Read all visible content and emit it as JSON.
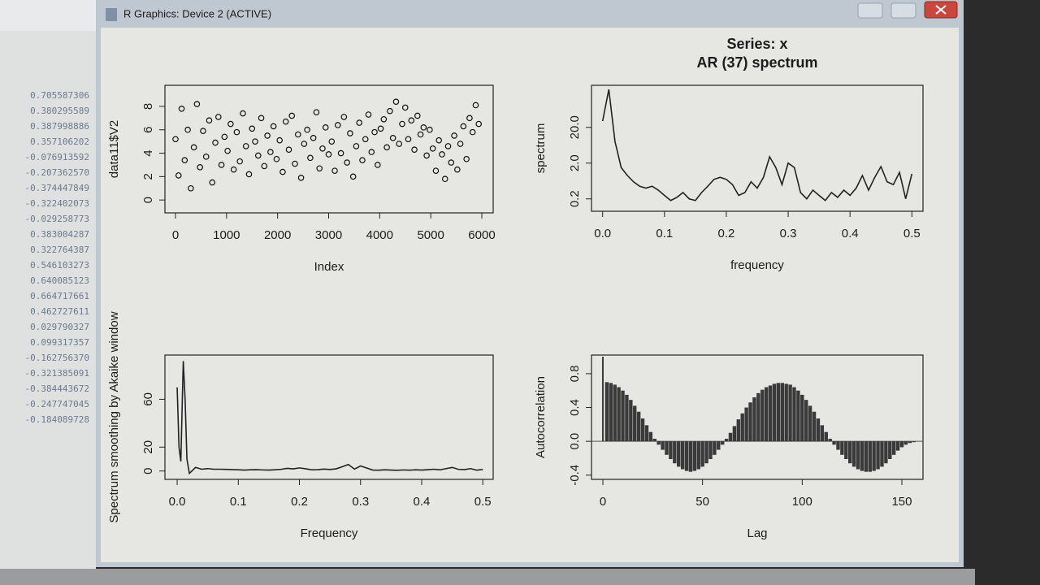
{
  "window": {
    "title": "R Graphics: Device 2 (ACTIVE)"
  },
  "console": {
    "values": [
      "0.705587306",
      "0.380295589",
      "0.387998886",
      "0.357106202",
      "-0.076913592",
      "-0.207362570",
      "-0.374447849",
      "-0.322402073",
      "-0.029258773",
      "0.383004287",
      "0.322764387",
      "0.546103273",
      "0.640085123",
      "0.664717661",
      "0.462727611",
      "0.029790327",
      "0.099317357",
      "-0.162756370",
      "-0.321385091",
      "-0.384443672",
      "-0.247747045",
      "-0.184089728"
    ]
  },
  "chart_data": [
    {
      "type": "scatter",
      "xlabel": "Index",
      "ylabel": "data11$V2",
      "x": [
        0,
        60,
        120,
        180,
        240,
        300,
        360,
        420,
        480,
        540,
        600,
        660,
        720,
        780,
        840,
        900,
        960,
        1020,
        1080,
        1140,
        1200,
        1260,
        1320,
        1380,
        1440,
        1500,
        1560,
        1620,
        1680,
        1740,
        1800,
        1860,
        1920,
        1980,
        2040,
        2100,
        2160,
        2220,
        2280,
        2340,
        2400,
        2460,
        2520,
        2580,
        2640,
        2700,
        2760,
        2820,
        2880,
        2940,
        3000,
        3060,
        3120,
        3180,
        3240,
        3300,
        3360,
        3420,
        3480,
        3540,
        3600,
        3660,
        3720,
        3780,
        3840,
        3900,
        3960,
        4020,
        4080,
        4140,
        4200,
        4260,
        4320,
        4380,
        4440,
        4500,
        4560,
        4620,
        4680,
        4740,
        4800,
        4860,
        4920,
        4980,
        5040,
        5100,
        5160,
        5220,
        5280,
        5340,
        5400,
        5460,
        5520,
        5580,
        5640,
        5700,
        5760,
        5820,
        5880,
        5940
      ],
      "values": [
        5.2,
        2.1,
        7.8,
        3.4,
        6.0,
        1.0,
        4.5,
        8.2,
        2.8,
        5.9,
        3.7,
        6.8,
        1.5,
        4.9,
        7.1,
        3.0,
        5.4,
        4.2,
        6.5,
        2.6,
        5.8,
        3.3,
        7.4,
        4.6,
        2.2,
        6.1,
        5.0,
        3.8,
        7.0,
        2.9,
        5.5,
        4.1,
        6.3,
        3.5,
        5.1,
        2.4,
        6.7,
        4.3,
        7.2,
        3.1,
        5.6,
        1.9,
        4.8,
        6.0,
        3.6,
        5.3,
        7.5,
        2.7,
        4.4,
        6.2,
        3.9,
        5.0,
        2.5,
        6.4,
        4.0,
        7.1,
        3.2,
        5.7,
        2.0,
        4.6,
        6.6,
        3.4,
        5.2,
        7.3,
        4.1,
        5.8,
        3.0,
        6.1,
        6.9,
        4.5,
        7.6,
        5.3,
        8.4,
        4.8,
        6.5,
        7.9,
        5.2,
        6.8,
        4.3,
        7.2,
        5.6,
        6.2,
        3.8,
        6.0,
        4.4,
        2.5,
        5.1,
        3.9,
        1.8,
        4.6,
        3.2,
        5.5,
        2.6,
        4.8,
        6.3,
        3.5,
        7.0,
        5.8,
        8.1,
        6.5
      ],
      "color": "#111111",
      "xlim": [
        -207,
        6223
      ],
      "xticks": [
        0,
        1000,
        2000,
        3000,
        4000,
        5000,
        6000
      ],
      "ylim": [
        -1.1,
        9.8
      ],
      "yticks": [
        0,
        2,
        4,
        6,
        8
      ]
    },
    {
      "type": "line",
      "title": "Series: x",
      "subtitle": "AR (37) spectrum",
      "xlabel": "frequency",
      "ylabel": "spectrum",
      "x": [
        0,
        0.01,
        0.02,
        0.03,
        0.04,
        0.05,
        0.06,
        0.07,
        0.08,
        0.09,
        0.1,
        0.11,
        0.12,
        0.13,
        0.14,
        0.15,
        0.16,
        0.17,
        0.18,
        0.19,
        0.2,
        0.21,
        0.22,
        0.23,
        0.24,
        0.25,
        0.26,
        0.27,
        0.28,
        0.29,
        0.3,
        0.31,
        0.32,
        0.33,
        0.34,
        0.35,
        0.36,
        0.37,
        0.38,
        0.39,
        0.4,
        0.41,
        0.42,
        0.43,
        0.44,
        0.45,
        0.46,
        0.47,
        0.48,
        0.49,
        0.5
      ],
      "values": [
        30,
        230,
        8,
        1.5,
        0.9,
        0.6,
        0.45,
        0.4,
        0.45,
        0.35,
        0.25,
        0.18,
        0.22,
        0.3,
        0.2,
        0.18,
        0.3,
        0.45,
        0.7,
        0.8,
        0.7,
        0.5,
        0.25,
        0.3,
        0.6,
        0.4,
        0.8,
        3,
        1.5,
        0.5,
        2,
        1.5,
        0.3,
        0.2,
        0.35,
        0.25,
        0.18,
        0.3,
        0.22,
        0.35,
        0.25,
        0.4,
        0.9,
        0.35,
        0.8,
        1.6,
        0.6,
        0.5,
        1.1,
        0.2,
        1.0
      ],
      "color": "#222222",
      "log_y": true,
      "xlim": [
        -0.018,
        0.518
      ],
      "xticks": [
        {
          "value": 0,
          "label": "0.0"
        },
        0.1,
        0.2,
        0.3,
        0.4,
        0.5
      ],
      "ylim": [
        0.09,
        300
      ],
      "yticks": [
        0.2,
        {
          "value": 2,
          "label": "2.0"
        },
        {
          "value": 20,
          "label": "20.0"
        }
      ]
    },
    {
      "type": "line",
      "xlabel": "Frequency",
      "ylabel": "Spectrum smoothing by Akaike window",
      "x": [
        0,
        0.003,
        0.006,
        0.01,
        0.013,
        0.016,
        0.02,
        0.03,
        0.04,
        0.05,
        0.06,
        0.07,
        0.08,
        0.09,
        0.1,
        0.11,
        0.12,
        0.13,
        0.14,
        0.15,
        0.16,
        0.17,
        0.18,
        0.19,
        0.2,
        0.21,
        0.22,
        0.23,
        0.24,
        0.25,
        0.26,
        0.27,
        0.28,
        0.29,
        0.3,
        0.31,
        0.32,
        0.33,
        0.34,
        0.35,
        0.36,
        0.37,
        0.38,
        0.39,
        0.4,
        0.41,
        0.42,
        0.43,
        0.44,
        0.45,
        0.46,
        0.47,
        0.48,
        0.49,
        0.5
      ],
      "values": [
        70,
        20,
        8,
        92,
        60,
        10,
        -2,
        3,
        1.5,
        2,
        1.5,
        1.5,
        1.4,
        1.2,
        1.0,
        0.8,
        1.0,
        1.1,
        0.9,
        0.8,
        1.0,
        1.4,
        2.2,
        1.8,
        2.6,
        1.9,
        1.0,
        1.1,
        1.6,
        1.3,
        1.8,
        3.5,
        5.5,
        1.6,
        4.2,
        2.5,
        0.8,
        0.7,
        1.0,
        0.8,
        0.6,
        0.9,
        0.7,
        1.0,
        0.8,
        1.1,
        1.5,
        1.0,
        2.0,
        3.0,
        1.4,
        1.2,
        2.0,
        0.7,
        1.3
      ],
      "color": "#222222",
      "xlim": [
        -0.02,
        0.517
      ],
      "xticks": [
        {
          "value": 0,
          "label": "0.0"
        },
        0.1,
        0.2,
        0.3,
        0.4,
        0.5
      ],
      "ylim": [
        -7,
        97
      ],
      "yticks": [
        0,
        20,
        60
      ]
    },
    {
      "type": "bar",
      "xlabel": "Lag",
      "ylabel": "Autocorrelation",
      "x": [
        0,
        2,
        4,
        6,
        8,
        10,
        12,
        14,
        16,
        18,
        20,
        22,
        24,
        26,
        28,
        30,
        32,
        34,
        36,
        38,
        40,
        42,
        44,
        46,
        48,
        50,
        52,
        54,
        56,
        58,
        60,
        62,
        64,
        66,
        68,
        70,
        72,
        74,
        76,
        78,
        80,
        82,
        84,
        86,
        88,
        90,
        92,
        94,
        96,
        98,
        100,
        102,
        104,
        106,
        108,
        110,
        112,
        114,
        116,
        118,
        120,
        122,
        124,
        126,
        128,
        130,
        132,
        134,
        136,
        138,
        140,
        142,
        144,
        146,
        148,
        150,
        152,
        154,
        156
      ],
      "values": [
        1.0,
        0.7,
        0.69,
        0.67,
        0.64,
        0.6,
        0.55,
        0.49,
        0.42,
        0.35,
        0.27,
        0.19,
        0.11,
        0.03,
        -0.04,
        -0.1,
        -0.16,
        -0.21,
        -0.26,
        -0.3,
        -0.33,
        -0.35,
        -0.36,
        -0.35,
        -0.33,
        -0.3,
        -0.26,
        -0.21,
        -0.16,
        -0.1,
        -0.04,
        0.03,
        0.1,
        0.18,
        0.26,
        0.33,
        0.4,
        0.46,
        0.52,
        0.57,
        0.61,
        0.64,
        0.66,
        0.68,
        0.69,
        0.69,
        0.68,
        0.67,
        0.64,
        0.6,
        0.55,
        0.49,
        0.42,
        0.35,
        0.27,
        0.19,
        0.11,
        0.03,
        -0.04,
        -0.1,
        -0.16,
        -0.21,
        -0.26,
        -0.3,
        -0.33,
        -0.35,
        -0.36,
        -0.36,
        -0.35,
        -0.33,
        -0.3,
        -0.26,
        -0.21,
        -0.16,
        -0.11,
        -0.07,
        -0.04,
        -0.02,
        -0.01
      ],
      "color": "#3a3a3a",
      "xlim": [
        -5.7,
        160.6
      ],
      "xticks": [
        0,
        50,
        100,
        150
      ],
      "ylim": [
        -0.45,
        1.02
      ],
      "yticks": [
        -0.4,
        {
          "value": 0,
          "label": "0.0"
        },
        0.4,
        0.8
      ]
    }
  ]
}
